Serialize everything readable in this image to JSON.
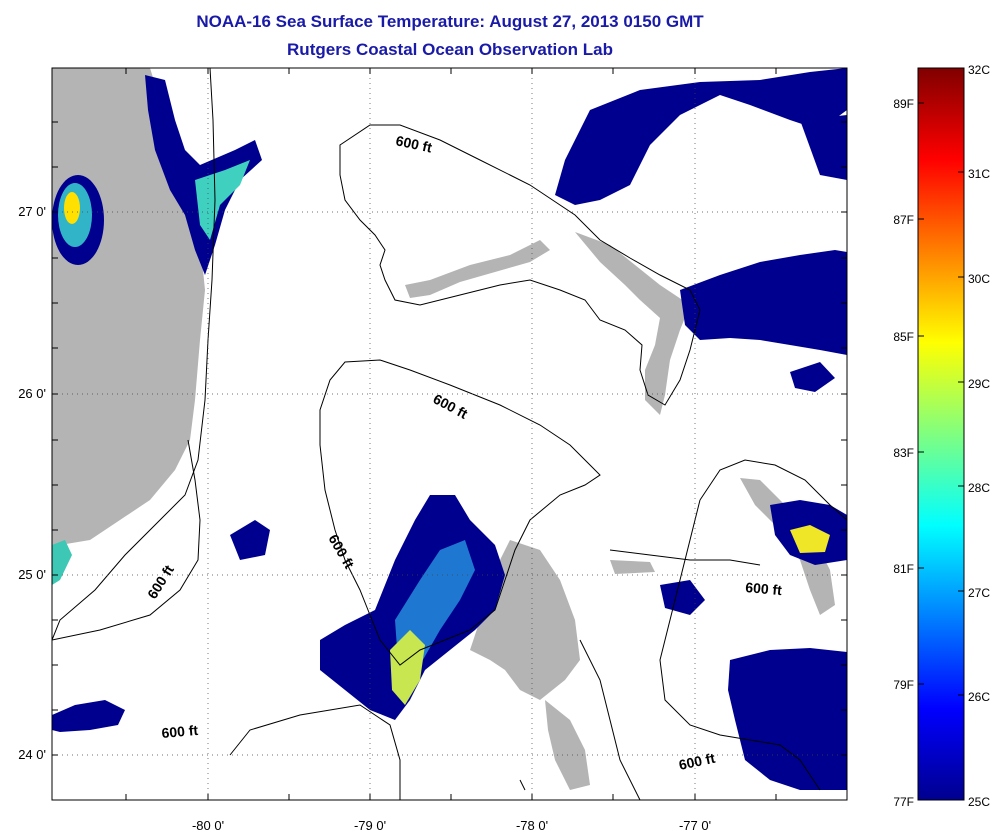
{
  "title": "NOAA-16 Sea Surface Temperature:  August 27, 2013 0150 GMT",
  "subtitle": "Rutgers Coastal Ocean Observation Lab",
  "lat_ticks": [
    "27 0'",
    "26 0'",
    "25 0'",
    "24 0'"
  ],
  "lon_ticks": [
    "-80 0'",
    "-79 0'",
    "-78 0'",
    "-77 0'"
  ],
  "contour_labels": [
    "600 ft",
    "600 ft",
    "600 ft",
    "600 ft",
    "600 ft",
    "600 ft",
    "600 ft"
  ],
  "colorbar": {
    "celsius": [
      "32C",
      "31C",
      "30C",
      "29C",
      "28C",
      "27C",
      "26C",
      "25C"
    ],
    "fahrenheit": [
      "89F",
      "87F",
      "85F",
      "83F",
      "81F",
      "79F",
      "77F"
    ]
  },
  "colors": {
    "land": "#b4b4b4",
    "title": "#1a1aa8",
    "sst_cold": "#00008f"
  }
}
